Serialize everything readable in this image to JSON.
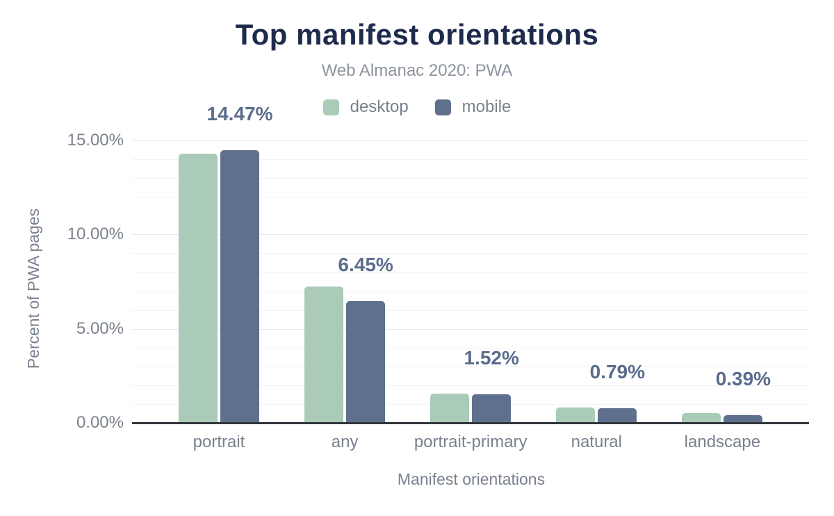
{
  "chart": {
    "title": "Top manifest orientations",
    "subtitle": "Web Almanac 2020: PWA",
    "x_axis_title": "Manifest orientations",
    "y_axis_title": "Percent of PWA pages"
  },
  "chart_data": {
    "type": "bar",
    "title": "Top manifest orientations",
    "subtitle": "Web Almanac 2020: PWA",
    "xlabel": "Manifest orientations",
    "ylabel": "Percent of PWA pages",
    "categories": [
      "portrait",
      "any",
      "portrait-primary",
      "natural",
      "landscape"
    ],
    "series": [
      {
        "name": "desktop",
        "color": "#a9cbb8",
        "values": [
          14.3,
          7.25,
          1.56,
          0.81,
          0.51
        ]
      },
      {
        "name": "mobile",
        "color": "#5f6f8e",
        "values": [
          14.47,
          6.45,
          1.52,
          0.79,
          0.39
        ]
      }
    ],
    "value_labels": [
      "14.47%",
      "6.45%",
      "1.52%",
      "0.79%",
      "0.39%"
    ],
    "value_labels_series": "mobile",
    "y_ticks": [
      {
        "value": 0,
        "label": "0.00%"
      },
      {
        "value": 5,
        "label": "5.00%"
      },
      {
        "value": 10,
        "label": "10.00%"
      },
      {
        "value": 15,
        "label": "15.00%"
      }
    ],
    "ylim": [
      0,
      15
    ],
    "grid": {
      "minor_step_percent": 1,
      "major_step_percent": 5,
      "grid_on": true
    },
    "legend_position": "top-center"
  },
  "colors": {
    "background": "#ffffff",
    "title": "#1f2b4c",
    "subtitle": "#8d949d",
    "axis_text": "#79818d",
    "tick_text": "#7b828c",
    "value_label": "#5b6c8d",
    "desktop_bar": "#a9cbb8",
    "mobile_bar": "#5f6f8e",
    "grid_major": "#e4e6ea",
    "grid_minor": "#f3f4f6",
    "axis_line": "#31363b"
  }
}
